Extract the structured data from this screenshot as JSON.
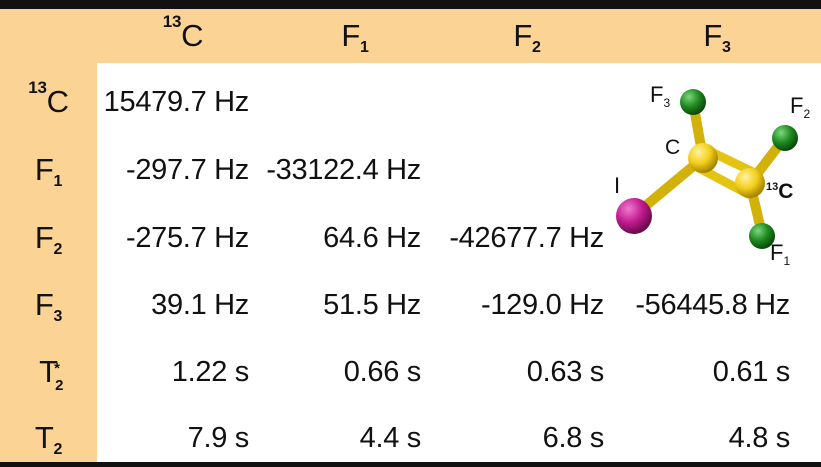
{
  "table": {
    "col_headers": [
      {
        "iso": "13",
        "sym": "C",
        "sub": ""
      },
      {
        "iso": "",
        "sym": "F",
        "sub": "1"
      },
      {
        "iso": "",
        "sym": "F",
        "sub": "2"
      },
      {
        "iso": "",
        "sym": "F",
        "sub": "3"
      }
    ],
    "rows": [
      {
        "label": {
          "iso": "13",
          "sym": "C",
          "sub": ""
        },
        "cells": [
          "15479.7 Hz",
          "",
          "",
          ""
        ]
      },
      {
        "label": {
          "iso": "",
          "sym": "F",
          "sub": "1"
        },
        "cells": [
          "-297.7 Hz",
          "-33122.4 Hz",
          "",
          ""
        ]
      },
      {
        "label": {
          "iso": "",
          "sym": "F",
          "sub": "2"
        },
        "cells": [
          "-275.7 Hz",
          "64.6 Hz",
          "-42677.7 Hz",
          ""
        ]
      },
      {
        "label": {
          "iso": "",
          "sym": "F",
          "sub": "3"
        },
        "cells": [
          "39.1 Hz",
          "51.5 Hz",
          "-129.0 Hz",
          "-56445.8 Hz"
        ]
      },
      {
        "label": {
          "sym": "T",
          "star": "*",
          "sub": "2"
        },
        "cells": [
          "1.22 s",
          "0.66 s",
          "0.63 s",
          "0.61 s"
        ]
      },
      {
        "label": {
          "iso": "",
          "sym": "T",
          "sub": "2"
        },
        "cells": [
          "7.9 s",
          "4.4 s",
          "6.8 s",
          "4.8 s"
        ]
      }
    ]
  },
  "molecule": {
    "atoms": {
      "f3": {
        "sym": "F",
        "sub": "3"
      },
      "f2": {
        "sym": "F",
        "sub": "2"
      },
      "f1": {
        "sym": "F",
        "sub": "1"
      },
      "c": {
        "sym": "C"
      },
      "c13": {
        "iso": "13",
        "sym": "C"
      },
      "i": {
        "sym": "I"
      }
    }
  },
  "colors": {
    "header_fill": "#fbd495",
    "fluorine": "#1f8a1f",
    "carbon": "#f2cf1a",
    "iodine": "#c21a8e",
    "rule": "#111111"
  }
}
